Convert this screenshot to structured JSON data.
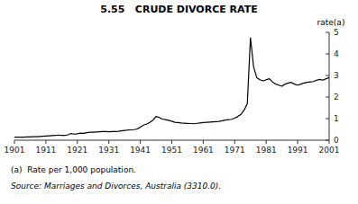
{
  "chart_data": {
    "type": "line",
    "title": "5.55   CRUDE DIVORCE RATE",
    "y_label": "rate(a)",
    "annotations": [
      "(a)  Rate per 1,000 population.",
      "Source: Marriages and Divorces, Australia (3310.0)."
    ],
    "color": "#000000",
    "xlim": [
      1901,
      2001
    ],
    "ylim": [
      0,
      5
    ],
    "xticks": [
      1901,
      1911,
      1921,
      1931,
      1941,
      1951,
      1961,
      1971,
      1981,
      1991,
      2001
    ],
    "yticks": [
      0,
      1,
      2,
      3,
      4,
      5
    ],
    "x": [
      1901,
      1902,
      1903,
      1904,
      1905,
      1906,
      1907,
      1908,
      1909,
      1910,
      1911,
      1912,
      1913,
      1914,
      1915,
      1916,
      1917,
      1918,
      1919,
      1920,
      1921,
      1922,
      1923,
      1924,
      1925,
      1926,
      1927,
      1928,
      1929,
      1930,
      1931,
      1932,
      1933,
      1934,
      1935,
      1936,
      1937,
      1938,
      1939,
      1940,
      1941,
      1942,
      1943,
      1944,
      1945,
      1946,
      1947,
      1948,
      1949,
      1950,
      1951,
      1952,
      1953,
      1954,
      1955,
      1956,
      1957,
      1958,
      1959,
      1960,
      1961,
      1962,
      1963,
      1964,
      1965,
      1966,
      1967,
      1968,
      1969,
      1970,
      1971,
      1972,
      1973,
      1974,
      1975,
      1976,
      1977,
      1978,
      1979,
      1980,
      1981,
      1982,
      1983,
      1984,
      1985,
      1986,
      1987,
      1988,
      1989,
      1990,
      1991,
      1992,
      1993,
      1994,
      1995,
      1996,
      1997,
      1998,
      1999,
      2000,
      2001
    ],
    "values": [
      0.14,
      0.14,
      0.14,
      0.14,
      0.15,
      0.15,
      0.16,
      0.16,
      0.17,
      0.18,
      0.19,
      0.2,
      0.21,
      0.22,
      0.24,
      0.22,
      0.22,
      0.25,
      0.31,
      0.28,
      0.3,
      0.33,
      0.32,
      0.35,
      0.37,
      0.37,
      0.38,
      0.39,
      0.4,
      0.4,
      0.39,
      0.4,
      0.4,
      0.41,
      0.43,
      0.45,
      0.47,
      0.48,
      0.49,
      0.52,
      0.6,
      0.7,
      0.75,
      0.82,
      0.93,
      1.1,
      1.05,
      0.98,
      0.95,
      0.92,
      0.88,
      0.83,
      0.82,
      0.8,
      0.79,
      0.78,
      0.77,
      0.76,
      0.78,
      0.8,
      0.82,
      0.83,
      0.84,
      0.85,
      0.86,
      0.87,
      0.9,
      0.93,
      0.95,
      0.97,
      1.02,
      1.1,
      1.2,
      1.4,
      1.7,
      4.75,
      3.4,
      2.9,
      2.8,
      2.75,
      2.8,
      2.85,
      2.7,
      2.6,
      2.55,
      2.5,
      2.6,
      2.65,
      2.68,
      2.6,
      2.55,
      2.6,
      2.65,
      2.68,
      2.7,
      2.72,
      2.78,
      2.82,
      2.78,
      2.85,
      2.9
    ]
  }
}
